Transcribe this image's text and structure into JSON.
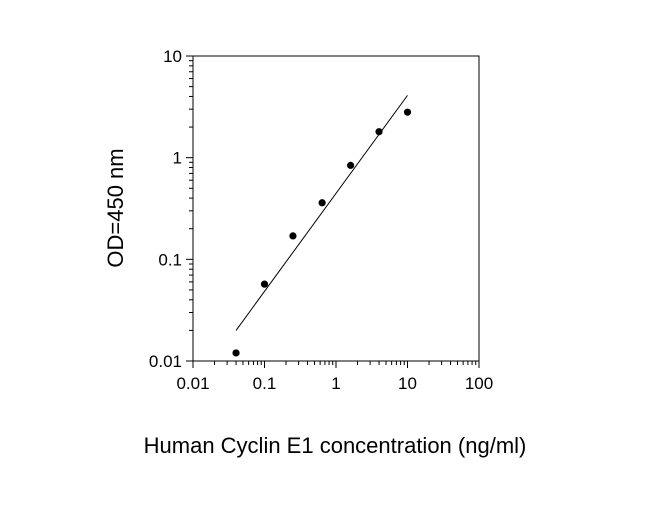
{
  "chart_data": {
    "type": "scatter",
    "title": "",
    "xlabel": "Human Cyclin E1 concentration (ng/ml)",
    "ylabel": "OD=450 nm",
    "xscale": "log",
    "yscale": "log",
    "xlim": [
      0.01,
      100
    ],
    "ylim": [
      0.01,
      10
    ],
    "x_ticks": [
      "0.01",
      "0.1",
      "1",
      "10",
      "100"
    ],
    "y_ticks": [
      "0.01",
      "0.1",
      "1",
      "10"
    ],
    "grid": false,
    "legend": "none",
    "series": [
      {
        "type": "scatter",
        "x": [
          0.04,
          0.1,
          0.25,
          0.64,
          1.6,
          4,
          10
        ],
        "y": [
          0.012,
          0.057,
          0.17,
          0.36,
          0.84,
          1.8,
          2.8
        ]
      }
    ],
    "fit_line": {
      "x": [
        0.04,
        10
      ],
      "y": [
        0.02,
        4.1
      ]
    },
    "colors": {
      "points": "#000000",
      "line": "#000000",
      "axes": "#000000"
    }
  }
}
